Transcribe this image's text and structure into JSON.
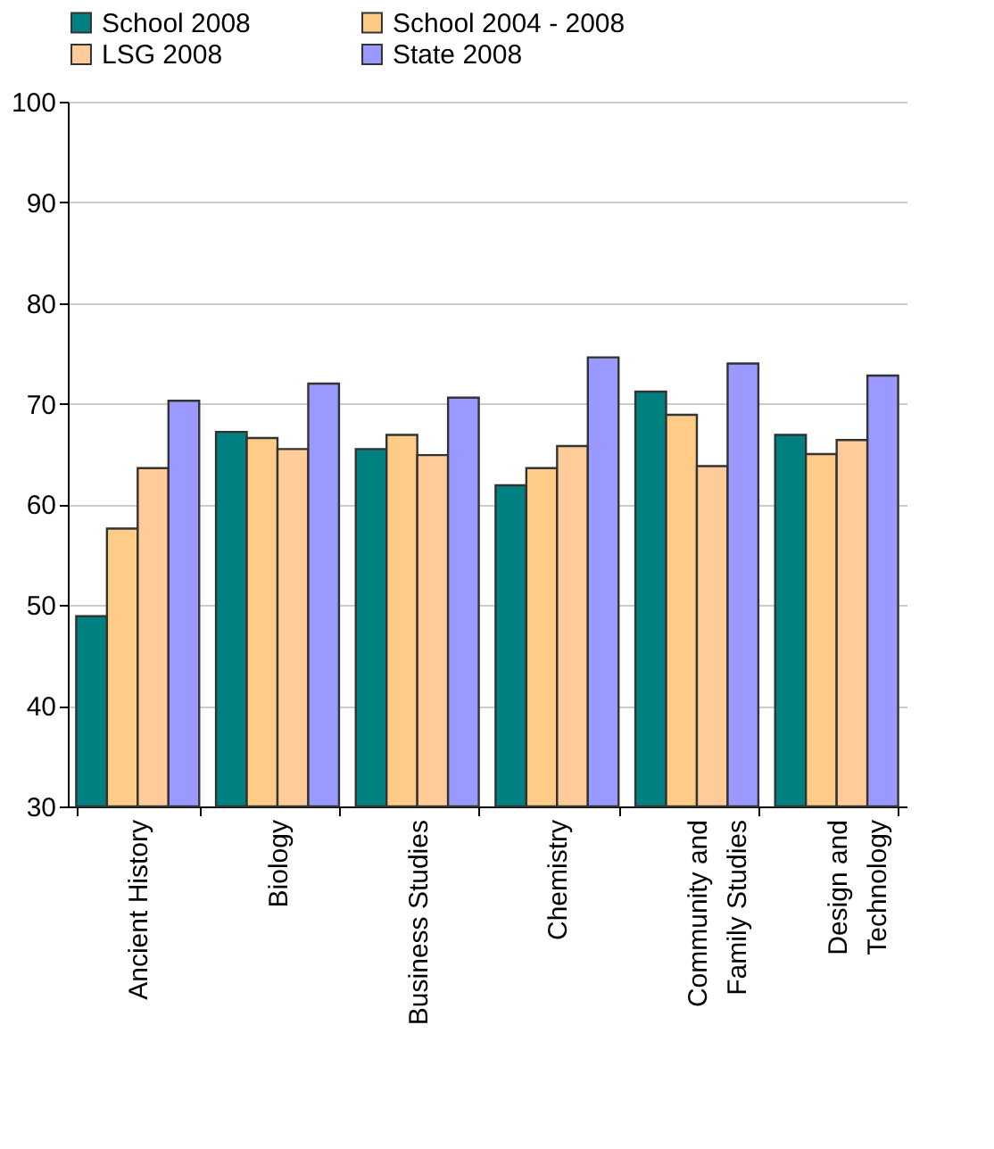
{
  "chart_data": {
    "type": "bar",
    "categories": [
      "Ancient History",
      "Biology",
      "Business Studies",
      "Chemistry",
      "Community and\nFamily Studies",
      "Design and\nTechnology"
    ],
    "series": [
      {
        "name": "School 2008",
        "color": "#008080",
        "values": [
          48.9,
          67.2,
          65.5,
          61.9,
          71.2,
          66.9
        ]
      },
      {
        "name": "School 2004 - 2008",
        "color": "#ffcc88",
        "values": [
          57.6,
          66.6,
          66.9,
          63.6,
          68.9,
          65.0
        ]
      },
      {
        "name": "LSG 2008",
        "color": "#ffcc99",
        "values": [
          63.6,
          65.5,
          64.9,
          65.8,
          63.8,
          66.4
        ]
      },
      {
        "name": "State 2008",
        "color": "#9999ff",
        "values": [
          70.3,
          72.0,
          70.6,
          74.6,
          74.0,
          72.8
        ]
      }
    ],
    "ylim": [
      30,
      100
    ],
    "yticks": [
      30,
      40,
      50,
      60,
      70,
      80,
      90,
      100
    ],
    "grid": "y",
    "legend": "top"
  }
}
